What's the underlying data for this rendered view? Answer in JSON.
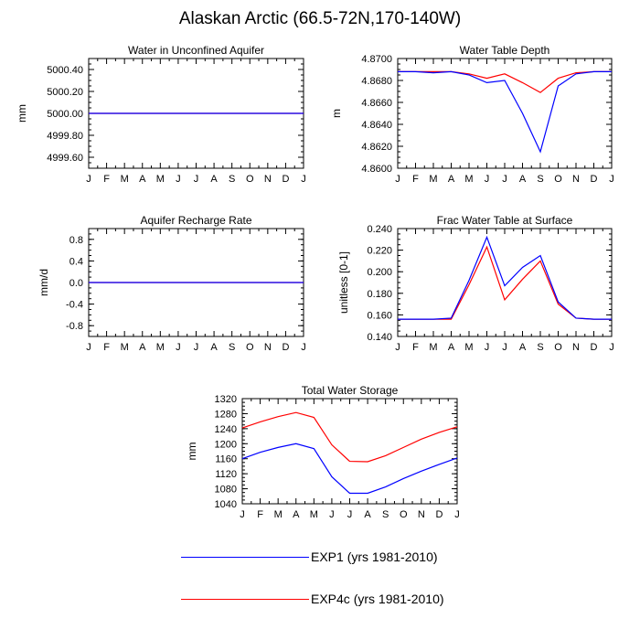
{
  "page_title": "Alaskan Arctic (66.5-72N,170-140W)",
  "colors": {
    "exp1": "#0000ff",
    "exp4c": "#ff0000"
  },
  "legend": [
    {
      "label": "EXP1 (yrs 1981-2010)",
      "color": "#0000ff"
    },
    {
      "label": "EXP4c (yrs 1981-2010)",
      "color": "#ff0000"
    }
  ],
  "chart_data": [
    {
      "type": "line",
      "title": "Water in Unconfined Aquifer",
      "ylabel": "mm",
      "x": [
        "J",
        "F",
        "M",
        "A",
        "M",
        "J",
        "J",
        "A",
        "S",
        "O",
        "N",
        "D",
        "J"
      ],
      "ylim": [
        4999.5,
        5000.5
      ],
      "yticks": [
        4999.6,
        4999.8,
        5000.0,
        5000.2,
        5000.4
      ],
      "ytick_labels": [
        "4999.60",
        "4999.80",
        "5000.00",
        "5000.20",
        "5000.40"
      ],
      "series": [
        {
          "color": "#ff0000",
          "values": [
            5000,
            5000,
            5000,
            5000,
            5000,
            5000,
            5000,
            5000,
            5000,
            5000,
            5000,
            5000,
            5000
          ]
        },
        {
          "color": "#0000ff",
          "values": [
            5000,
            5000,
            5000,
            5000,
            5000,
            5000,
            5000,
            5000,
            5000,
            5000,
            5000,
            5000,
            5000
          ]
        }
      ]
    },
    {
      "type": "line",
      "title": "Water Table Depth",
      "ylabel": "m",
      "x": [
        "J",
        "F",
        "M",
        "A",
        "M",
        "J",
        "J",
        "A",
        "S",
        "O",
        "N",
        "D",
        "J"
      ],
      "ylim": [
        4.86,
        4.87
      ],
      "yticks": [
        4.86,
        4.862,
        4.864,
        4.866,
        4.868,
        4.87
      ],
      "ytick_labels": [
        "4.8600",
        "4.8620",
        "4.8640",
        "4.8660",
        "4.8680",
        "4.8700"
      ],
      "series": [
        {
          "color": "#ff0000",
          "values": [
            4.8688,
            4.8688,
            4.8688,
            4.8688,
            4.8686,
            4.8682,
            4.8686,
            4.8678,
            4.8669,
            4.8682,
            4.8687,
            4.8688,
            4.8688
          ]
        },
        {
          "color": "#0000ff",
          "values": [
            4.8688,
            4.8688,
            4.8687,
            4.8688,
            4.8685,
            4.8678,
            4.868,
            4.865,
            4.8615,
            4.8675,
            4.8686,
            4.8688,
            4.8688
          ]
        }
      ]
    },
    {
      "type": "line",
      "title": "Aquifer Recharge Rate",
      "ylabel": "mm/d",
      "x": [
        "J",
        "F",
        "M",
        "A",
        "M",
        "J",
        "J",
        "A",
        "S",
        "O",
        "N",
        "D",
        "J"
      ],
      "ylim": [
        -1.0,
        1.0
      ],
      "yticks": [
        -0.8,
        -0.4,
        0.0,
        0.4,
        0.8
      ],
      "ytick_labels": [
        "-0.8",
        "-0.4",
        "0.0",
        "0.4",
        "0.8"
      ],
      "series": [
        {
          "color": "#ff0000",
          "values": [
            0,
            0,
            0,
            0,
            0,
            0,
            0,
            0,
            0,
            0,
            0,
            0,
            0
          ]
        },
        {
          "color": "#0000ff",
          "values": [
            0,
            0,
            0,
            0,
            0,
            0,
            0,
            0,
            0,
            0,
            0,
            0,
            0
          ]
        }
      ]
    },
    {
      "type": "line",
      "title": "Frac Water Table at Surface",
      "ylabel": "unitless [0-1]",
      "x": [
        "J",
        "F",
        "M",
        "A",
        "M",
        "J",
        "J",
        "A",
        "S",
        "O",
        "N",
        "D",
        "J"
      ],
      "ylim": [
        0.14,
        0.24
      ],
      "yticks": [
        0.14,
        0.16,
        0.18,
        0.2,
        0.22,
        0.24
      ],
      "ytick_labels": [
        "0.140",
        "0.160",
        "0.180",
        "0.200",
        "0.220",
        "0.240"
      ],
      "series": [
        {
          "color": "#ff0000",
          "values": [
            0.156,
            0.156,
            0.156,
            0.156,
            0.188,
            0.223,
            0.174,
            0.193,
            0.21,
            0.17,
            0.157,
            0.156,
            0.156
          ]
        },
        {
          "color": "#0000ff",
          "values": [
            0.156,
            0.156,
            0.156,
            0.157,
            0.192,
            0.232,
            0.187,
            0.204,
            0.215,
            0.172,
            0.157,
            0.156,
            0.156
          ]
        }
      ]
    },
    {
      "type": "line",
      "title": "Total Water Storage",
      "ylabel": "mm",
      "x": [
        "J",
        "F",
        "M",
        "A",
        "M",
        "J",
        "J",
        "A",
        "S",
        "O",
        "N",
        "D",
        "J"
      ],
      "ylim": [
        1040,
        1320
      ],
      "yticks": [
        1040,
        1080,
        1120,
        1160,
        1200,
        1240,
        1280,
        1320
      ],
      "ytick_labels": [
        "1040",
        "1080",
        "1120",
        "1160",
        "1200",
        "1240",
        "1280",
        "1320"
      ],
      "series": [
        {
          "color": "#ff0000",
          "values": [
            1242,
            1258,
            1272,
            1283,
            1270,
            1197,
            1153,
            1152,
            1168,
            1190,
            1212,
            1230,
            1245
          ]
        },
        {
          "color": "#0000ff",
          "values": [
            1160,
            1177,
            1190,
            1200,
            1187,
            1112,
            1068,
            1068,
            1085,
            1107,
            1127,
            1145,
            1162
          ]
        }
      ]
    }
  ]
}
